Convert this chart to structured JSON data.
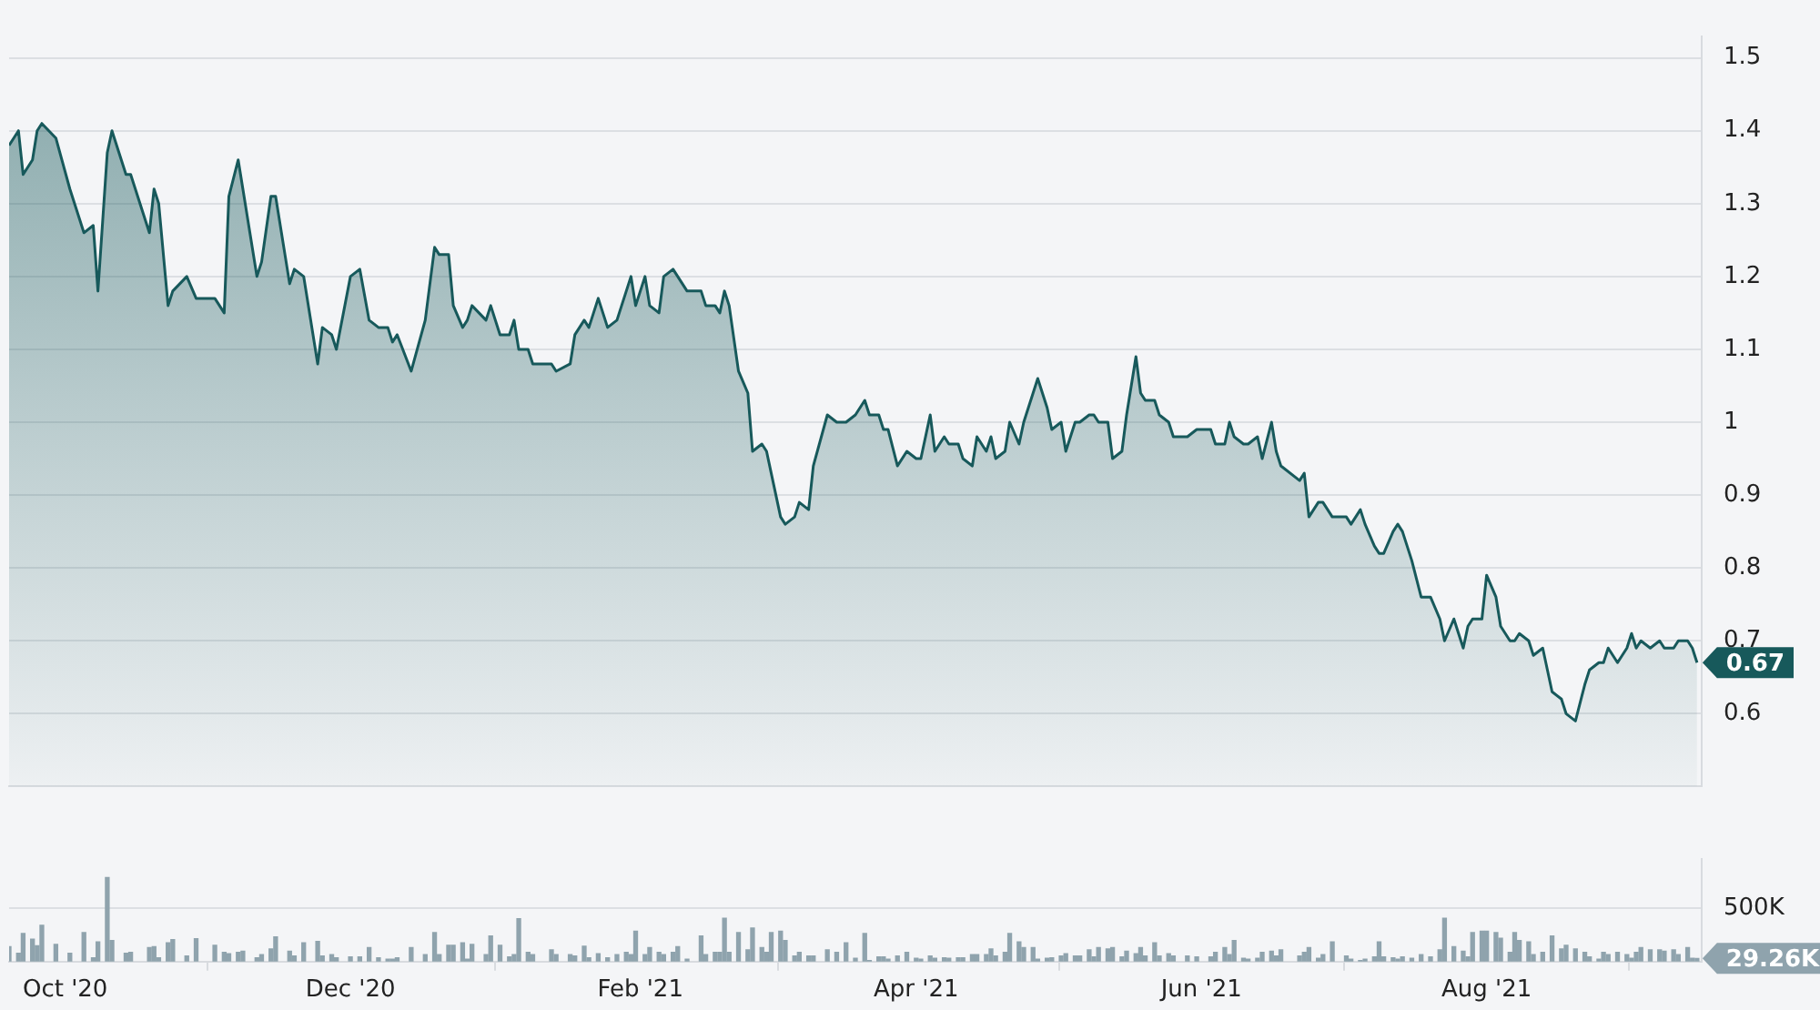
{
  "chart_data": [
    {
      "type": "area",
      "x": [
        "2020-09-19",
        "2020-09-21",
        "2020-09-22",
        "2020-09-24",
        "2020-09-25",
        "2020-09-26",
        "2020-09-29",
        "2020-10-02",
        "2020-10-05",
        "2020-10-07",
        "2020-10-08",
        "2020-10-10",
        "2020-10-11",
        "2020-10-14",
        "2020-10-15",
        "2020-10-19",
        "2020-10-20",
        "2020-10-21",
        "2020-10-23",
        "2020-10-24",
        "2020-10-27",
        "2020-10-29",
        "2020-11-02",
        "2020-11-04",
        "2020-11-05",
        "2020-11-07",
        "2020-11-08",
        "2020-11-11",
        "2020-11-12",
        "2020-11-14",
        "2020-11-15",
        "2020-11-18",
        "2020-11-19",
        "2020-11-21",
        "2020-11-24",
        "2020-11-25",
        "2020-11-27",
        "2020-11-28",
        "2020-12-01",
        "2020-12-03",
        "2020-12-05",
        "2020-12-07",
        "2020-12-09",
        "2020-12-10",
        "2020-12-11",
        "2020-12-14",
        "2020-12-17",
        "2020-12-19",
        "2020-12-20",
        "2020-12-22",
        "2020-12-23",
        "2020-12-25",
        "2020-12-26",
        "2020-12-27",
        "2020-12-30",
        "2020-12-31",
        "2021-01-02",
        "2021-01-04",
        "2021-01-05",
        "2021-01-06",
        "2021-01-08",
        "2021-01-09",
        "2021-01-13",
        "2021-01-14",
        "2021-01-17",
        "2021-01-18",
        "2021-01-20",
        "2021-01-21",
        "2021-01-23",
        "2021-01-25",
        "2021-01-27",
        "2021-01-29",
        "2021-01-30",
        "2021-01-31",
        "2021-02-02",
        "2021-02-03",
        "2021-02-05",
        "2021-02-06",
        "2021-02-08",
        "2021-02-09",
        "2021-02-11",
        "2021-02-14",
        "2021-02-15",
        "2021-02-17",
        "2021-02-18",
        "2021-02-19",
        "2021-02-20",
        "2021-02-22",
        "2021-02-24",
        "2021-02-25",
        "2021-02-27",
        "2021-02-28",
        "2021-03-01",
        "2021-03-03",
        "2021-03-04",
        "2021-03-06",
        "2021-03-07",
        "2021-03-09",
        "2021-03-10",
        "2021-03-13",
        "2021-03-15",
        "2021-03-17",
        "2021-03-19",
        "2021-03-21",
        "2021-03-22",
        "2021-03-24",
        "2021-03-25",
        "2021-03-26",
        "2021-03-28",
        "2021-03-30",
        "2021-04-01",
        "2021-04-02",
        "2021-04-04",
        "2021-04-05",
        "2021-04-07",
        "2021-04-08",
        "2021-04-10",
        "2021-04-11",
        "2021-04-13",
        "2021-04-14",
        "2021-04-16",
        "2021-04-17",
        "2021-04-18",
        "2021-04-20",
        "2021-04-21",
        "2021-04-23",
        "2021-04-24",
        "2021-04-26",
        "2021-04-27",
        "2021-04-29",
        "2021-04-30",
        "2021-05-02",
        "2021-05-03",
        "2021-05-05",
        "2021-05-06",
        "2021-05-08",
        "2021-05-09",
        "2021-05-10",
        "2021-05-12",
        "2021-05-13",
        "2021-05-15",
        "2021-05-16",
        "2021-05-18",
        "2021-05-19",
        "2021-05-20",
        "2021-05-22",
        "2021-05-23",
        "2021-05-25",
        "2021-05-26",
        "2021-05-29",
        "2021-05-31",
        "2021-06-03",
        "2021-06-04",
        "2021-06-06",
        "2021-06-07",
        "2021-06-08",
        "2021-06-10",
        "2021-06-11",
        "2021-06-13",
        "2021-06-14",
        "2021-06-16",
        "2021-06-17",
        "2021-06-18",
        "2021-06-22",
        "2021-06-23",
        "2021-06-24",
        "2021-06-26",
        "2021-06-27",
        "2021-06-29",
        "2021-07-02",
        "2021-07-03",
        "2021-07-05",
        "2021-07-06",
        "2021-07-08",
        "2021-07-09",
        "2021-07-10",
        "2021-07-12",
        "2021-07-13",
        "2021-07-14",
        "2021-07-16",
        "2021-07-18",
        "2021-07-20",
        "2021-07-22",
        "2021-07-23",
        "2021-07-25",
        "2021-07-27",
        "2021-07-28",
        "2021-07-29",
        "2021-07-31",
        "2021-08-01",
        "2021-08-03",
        "2021-08-04",
        "2021-08-06",
        "2021-08-07",
        "2021-08-08",
        "2021-08-10",
        "2021-08-11",
        "2021-08-13",
        "2021-08-15",
        "2021-08-17",
        "2021-08-18",
        "2021-08-20",
        "2021-08-22",
        "2021-08-23",
        "2021-08-25",
        "2021-08-26",
        "2021-08-27",
        "2021-08-29",
        "2021-08-31",
        "2021-09-01",
        "2021-09-02",
        "2021-09-03",
        "2021-09-05",
        "2021-09-07",
        "2021-09-08",
        "2021-09-10",
        "2021-09-11",
        "2021-09-13",
        "2021-09-14",
        "2021-09-15"
      ],
      "series": [
        {
          "color": "#17595b",
          "values": [
            1.38,
            1.4,
            1.34,
            1.36,
            1.4,
            1.41,
            1.39,
            1.32,
            1.26,
            1.27,
            1.18,
            1.37,
            1.4,
            1.34,
            1.34,
            1.26,
            1.32,
            1.3,
            1.16,
            1.18,
            1.2,
            1.17,
            1.17,
            1.15,
            1.31,
            1.36,
            1.32,
            1.2,
            1.22,
            1.31,
            1.31,
            1.19,
            1.21,
            1.2,
            1.08,
            1.13,
            1.12,
            1.1,
            1.2,
            1.21,
            1.14,
            1.13,
            1.13,
            1.11,
            1.12,
            1.07,
            1.14,
            1.24,
            1.23,
            1.23,
            1.16,
            1.13,
            1.14,
            1.16,
            1.14,
            1.16,
            1.12,
            1.12,
            1.14,
            1.1,
            1.1,
            1.08,
            1.08,
            1.07,
            1.08,
            1.12,
            1.14,
            1.13,
            1.17,
            1.13,
            1.14,
            1.18,
            1.2,
            1.16,
            1.2,
            1.16,
            1.15,
            1.2,
            1.21,
            1.2,
            1.18,
            1.18,
            1.16,
            1.16,
            1.15,
            1.18,
            1.16,
            1.07,
            1.04,
            0.96,
            0.97,
            0.96,
            0.93,
            0.87,
            0.86,
            0.87,
            0.89,
            0.88,
            0.94,
            1.01,
            1.0,
            1.0,
            1.01,
            1.03,
            1.01,
            1.01,
            0.99,
            0.99,
            0.94,
            0.96,
            0.95,
            0.95,
            1.01,
            0.96,
            0.98,
            0.97,
            0.97,
            0.95,
            0.94,
            0.98,
            0.96,
            0.98,
            0.95,
            0.96,
            1.0,
            0.97,
            1.0,
            1.04,
            1.06,
            1.02,
            0.99,
            1.0,
            0.96,
            1.0,
            1.0,
            1.01,
            1.01,
            1.0,
            1.0,
            0.95,
            0.96,
            1.01,
            1.09,
            1.04,
            1.03,
            1.03,
            1.01,
            1.0,
            0.98,
            0.98,
            0.99,
            0.99,
            0.97,
            0.97,
            1.0,
            0.98,
            0.97,
            0.97,
            0.98,
            0.95,
            1.0,
            0.96,
            0.94,
            0.92,
            0.93,
            0.87,
            0.89,
            0.89,
            0.87,
            0.87,
            0.86,
            0.88,
            0.86,
            0.83,
            0.82,
            0.82,
            0.85,
            0.86,
            0.85,
            0.81,
            0.76,
            0.76,
            0.73,
            0.7,
            0.73,
            0.69,
            0.72,
            0.73,
            0.73,
            0.79,
            0.76,
            0.72,
            0.7,
            0.7,
            0.71,
            0.7,
            0.68,
            0.69,
            0.63,
            0.62,
            0.6,
            0.59,
            0.64,
            0.66,
            0.67,
            0.67,
            0.69,
            0.67,
            0.69,
            0.71,
            0.69,
            0.7,
            0.69,
            0.7,
            0.69,
            0.69,
            0.7,
            0.7,
            0.69,
            0.67
          ]
        }
      ],
      "xlim": [
        "2020-09-19",
        "2021-09-16"
      ],
      "ylim": [
        0.5,
        1.53
      ],
      "yticks": [
        0.6,
        0.7,
        0.8,
        0.9,
        1,
        1.1,
        1.2,
        1.3,
        1.4,
        1.5
      ],
      "grid": "y",
      "tick_labels": "y",
      "annotations": [
        {
          "text": "0.67",
          "x": "2021-09-15",
          "y": 0.67
        }
      ]
    },
    {
      "type": "bar",
      "x": [
        "2020-09-19",
        "2020-09-21",
        "2020-09-22",
        "2020-09-24",
        "2020-09-25",
        "2020-09-26",
        "2020-09-29",
        "2020-10-02",
        "2020-10-05",
        "2020-10-07",
        "2020-10-08",
        "2020-10-10",
        "2020-10-11",
        "2020-10-14",
        "2020-10-15",
        "2020-10-19",
        "2020-10-20",
        "2020-10-21",
        "2020-10-23",
        "2020-10-24",
        "2020-10-27",
        "2020-10-29",
        "2020-11-02",
        "2020-11-04",
        "2020-11-05",
        "2020-11-07",
        "2020-11-08",
        "2020-11-11",
        "2020-11-12",
        "2020-11-14",
        "2020-11-15",
        "2020-11-18",
        "2020-11-19",
        "2020-11-21",
        "2020-11-24",
        "2020-11-25",
        "2020-11-27",
        "2020-11-28",
        "2020-12-01",
        "2020-12-03",
        "2020-12-05",
        "2020-12-07",
        "2020-12-09",
        "2020-12-10",
        "2020-12-11",
        "2020-12-14",
        "2020-12-17",
        "2020-12-19",
        "2020-12-20",
        "2020-12-22",
        "2020-12-23",
        "2020-12-25",
        "2020-12-26",
        "2020-12-27",
        "2020-12-30",
        "2020-12-31",
        "2021-01-02",
        "2021-01-04",
        "2021-01-05",
        "2021-01-06",
        "2021-01-08",
        "2021-01-09",
        "2021-01-13",
        "2021-01-14",
        "2021-01-17",
        "2021-01-18",
        "2021-01-20",
        "2021-01-21",
        "2021-01-23",
        "2021-01-25",
        "2021-01-27",
        "2021-01-29",
        "2021-01-30",
        "2021-01-31",
        "2021-02-02",
        "2021-02-03",
        "2021-02-05",
        "2021-02-06",
        "2021-02-08",
        "2021-02-09",
        "2021-02-11",
        "2021-02-14",
        "2021-02-15",
        "2021-02-17",
        "2021-02-18",
        "2021-02-19",
        "2021-02-20",
        "2021-02-22",
        "2021-02-24",
        "2021-02-25",
        "2021-02-27",
        "2021-02-28",
        "2021-03-01",
        "2021-03-03",
        "2021-03-04",
        "2021-03-06",
        "2021-03-07",
        "2021-03-09",
        "2021-03-10",
        "2021-03-13",
        "2021-03-15",
        "2021-03-17",
        "2021-03-19",
        "2021-03-21",
        "2021-03-22",
        "2021-03-24",
        "2021-03-25",
        "2021-03-26",
        "2021-03-28",
        "2021-03-30",
        "2021-04-01",
        "2021-04-02",
        "2021-04-04",
        "2021-04-05",
        "2021-04-07",
        "2021-04-08",
        "2021-04-10",
        "2021-04-11",
        "2021-04-13",
        "2021-04-14",
        "2021-04-16",
        "2021-04-17",
        "2021-04-18",
        "2021-04-20",
        "2021-04-21",
        "2021-04-23",
        "2021-04-24",
        "2021-04-26",
        "2021-04-27",
        "2021-04-29",
        "2021-04-30",
        "2021-05-02",
        "2021-05-03",
        "2021-05-05",
        "2021-05-06",
        "2021-05-08",
        "2021-05-09",
        "2021-05-10",
        "2021-05-12",
        "2021-05-13",
        "2021-05-15",
        "2021-05-16",
        "2021-05-18",
        "2021-05-19",
        "2021-05-20",
        "2021-05-22",
        "2021-05-23",
        "2021-05-25",
        "2021-05-26",
        "2021-05-29",
        "2021-05-31",
        "2021-06-03",
        "2021-06-04",
        "2021-06-06",
        "2021-06-07",
        "2021-06-08",
        "2021-06-10",
        "2021-06-11",
        "2021-06-13",
        "2021-06-14",
        "2021-06-16",
        "2021-06-17",
        "2021-06-18",
        "2021-06-22",
        "2021-06-23",
        "2021-06-24",
        "2021-06-26",
        "2021-06-27",
        "2021-06-29",
        "2021-07-02",
        "2021-07-03",
        "2021-07-05",
        "2021-07-06",
        "2021-07-08",
        "2021-07-09",
        "2021-07-10",
        "2021-07-12",
        "2021-07-13",
        "2021-07-14",
        "2021-07-16",
        "2021-07-18",
        "2021-07-20",
        "2021-07-22",
        "2021-07-23",
        "2021-07-25",
        "2021-07-27",
        "2021-07-28",
        "2021-07-29",
        "2021-07-31",
        "2021-08-01",
        "2021-08-03",
        "2021-08-04",
        "2021-08-06",
        "2021-08-07",
        "2021-08-08",
        "2021-08-10",
        "2021-08-11",
        "2021-08-13",
        "2021-08-15",
        "2021-08-17",
        "2021-08-18",
        "2021-08-20",
        "2021-08-22",
        "2021-08-23",
        "2021-08-25",
        "2021-08-26",
        "2021-08-27",
        "2021-08-29",
        "2021-08-31",
        "2021-09-01",
        "2021-09-02",
        "2021-09-03",
        "2021-09-05",
        "2021-09-07",
        "2021-09-08",
        "2021-09-10",
        "2021-09-11",
        "2021-09-13",
        "2021-09-14",
        "2021-09-15"
      ],
      "values": [
        139,
        78,
        261,
        209,
        148,
        339,
        161,
        78,
        270,
        35,
        183,
        783,
        196,
        78,
        87,
        130,
        139,
        35,
        174,
        204,
        52,
        213,
        152,
        87,
        74,
        87,
        96,
        35,
        65,
        117,
        231,
        96,
        52,
        174,
        187,
        52,
        65,
        35,
        43,
        43,
        130,
        35,
        22,
        22,
        35,
        130,
        65,
        270,
        65,
        152,
        152,
        174,
        22,
        161,
        65,
        239,
        152,
        43,
        65,
        400,
        87,
        65,
        109,
        65,
        65,
        52,
        143,
        35,
        74,
        35,
        65,
        87,
        65,
        283,
        65,
        130,
        87,
        65,
        87,
        139,
        22,
        239,
        65,
        87,
        87,
        404,
        87,
        270,
        109,
        313,
        130,
        87,
        270,
        283,
        196,
        52,
        87,
        52,
        52,
        109,
        87,
        174,
        30,
        261,
        9,
        43,
        43,
        22,
        52,
        87,
        30,
        22,
        52,
        30,
        35,
        30,
        35,
        35,
        65,
        65,
        65,
        117,
        52,
        87,
        261,
        183,
        130,
        130,
        22,
        30,
        35,
        52,
        74,
        52,
        52,
        109,
        43,
        130,
        117,
        130,
        43,
        96,
        74,
        130,
        52,
        174,
        52,
        74,
        52,
        52,
        43,
        43,
        87,
        130,
        65,
        196,
        30,
        22,
        30,
        87,
        96,
        52,
        109,
        52,
        87,
        130,
        30,
        65,
        183,
        52,
        22,
        9,
        22,
        43,
        183,
        43,
        35,
        22,
        43,
        30,
        65,
        43,
        109,
        404,
        139,
        96,
        43,
        270,
        283,
        283,
        270,
        217,
        87,
        270,
        196,
        183,
        65,
        87,
        239,
        117,
        152,
        117,
        87,
        43,
        22,
        87,
        65,
        87,
        65,
        30,
        87,
        130,
        109,
        109,
        96,
        109,
        65,
        130,
        30,
        29.26
      ],
      "color": "#8fa3ad",
      "xlim": [
        "2020-09-19",
        "2021-09-16"
      ],
      "xticks": [
        {
          "value": "2020-10-01",
          "label": "Oct '20"
        },
        {
          "value": "2020-12-01",
          "label": "Dec '20"
        },
        {
          "value": "2021-02-01",
          "label": "Feb '21"
        },
        {
          "value": "2021-04-01",
          "label": "Apr '21"
        },
        {
          "value": "2021-06-01",
          "label": "Jun '21"
        },
        {
          "value": "2021-08-01",
          "label": "Aug '21"
        }
      ],
      "ylim": [
        0,
        960
      ],
      "yticks": [
        {
          "value": 500,
          "label": "500K"
        }
      ],
      "grid": "y",
      "annotations": [
        {
          "text": "29.26K",
          "x": "2021-09-15",
          "y": 29.26
        }
      ]
    }
  ]
}
